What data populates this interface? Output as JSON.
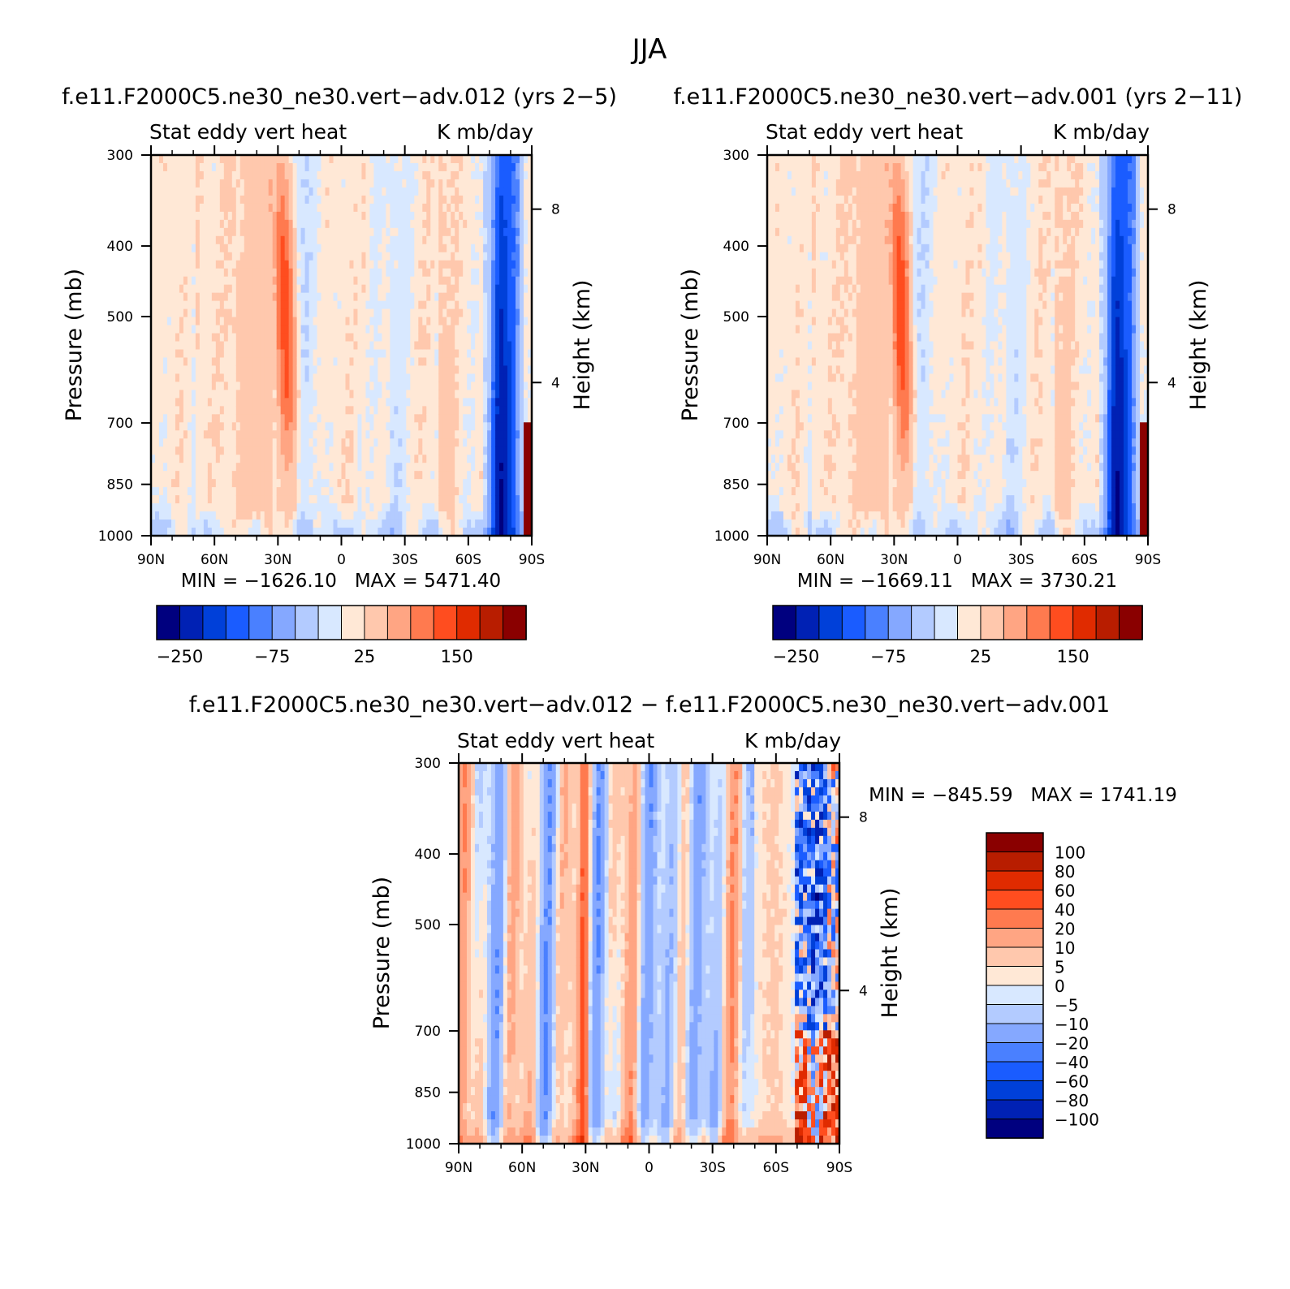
{
  "figure": {
    "title": "JJA"
  },
  "colors": {
    "panel_fill_levels": [
      "#00007f",
      "#0021b4",
      "#0040d9",
      "#1a5cff",
      "#4a80ff",
      "#85a8ff",
      "#b3cbff",
      "#d8e8ff",
      "#ffe8d6",
      "#ffc8ad",
      "#ffa583",
      "#ff7a4f",
      "#ff4d1f",
      "#e02b00",
      "#b81d00",
      "#8a0000"
    ],
    "diff_fill_levels": [
      "#00007f",
      "#0021b4",
      "#0040d9",
      "#1a5cff",
      "#4a80ff",
      "#85a8ff",
      "#b3cbff",
      "#d8e8ff",
      "#ffe8d6",
      "#ffc8ad",
      "#ffa583",
      "#ff7a4f",
      "#ff4d1f",
      "#e02b00",
      "#b81d00",
      "#8a0000"
    ]
  },
  "chart_data": [
    {
      "type": "heatmap",
      "panel_title": "f.e11.F2000C5.ne30_ne30.vert−adv.012 (yrs 2−5)",
      "left_string": "Stat eddy vert heat",
      "right_string": "K mb/day",
      "ylabel": "Pressure (mb)",
      "ylabel_right": "Height (km)",
      "x_ticks": [
        "90N",
        "60N",
        "30N",
        "0",
        "30S",
        "60S",
        "90S"
      ],
      "y_ticks": [
        "300",
        "400",
        "500",
        "700",
        "850",
        "1000"
      ],
      "y_ticks_right": [
        "8",
        "4"
      ],
      "minmax": "MIN = −1626.10   MAX = 5471.40",
      "colorbar_labels": [
        "−250",
        "−75",
        "25",
        "150"
      ],
      "min": -1626.1,
      "max": 5471.4,
      "ylim": [
        1000,
        300
      ],
      "xlim": [
        "90N",
        "90S"
      ]
    },
    {
      "type": "heatmap",
      "panel_title": "f.e11.F2000C5.ne30_ne30.vert−adv.001 (yrs 2−11)",
      "left_string": "Stat eddy vert heat",
      "right_string": "K mb/day",
      "ylabel": "Pressure (mb)",
      "ylabel_right": "Height (km)",
      "x_ticks": [
        "90N",
        "60N",
        "30N",
        "0",
        "30S",
        "60S",
        "90S"
      ],
      "y_ticks": [
        "300",
        "400",
        "500",
        "700",
        "850",
        "1000"
      ],
      "y_ticks_right": [
        "8",
        "4"
      ],
      "minmax": "MIN = −1669.11   MAX = 3730.21",
      "colorbar_labels": [
        "−250",
        "−75",
        "25",
        "150"
      ],
      "min": -1669.11,
      "max": 3730.21,
      "ylim": [
        1000,
        300
      ],
      "xlim": [
        "90N",
        "90S"
      ]
    },
    {
      "type": "heatmap",
      "panel_title": "f.e11.F2000C5.ne30_ne30.vert−adv.012 − f.e11.F2000C5.ne30_ne30.vert−adv.001",
      "left_string": "Stat eddy vert heat",
      "right_string": "K mb/day",
      "ylabel": "Pressure (mb)",
      "ylabel_right": "Height (km)",
      "x_ticks": [
        "90N",
        "60N",
        "30N",
        "0",
        "30S",
        "60S",
        "90S"
      ],
      "y_ticks": [
        "300",
        "400",
        "500",
        "700",
        "850",
        "1000"
      ],
      "y_ticks_right": [
        "8",
        "4"
      ],
      "minmax": "MIN = −845.59   MAX = 1741.19",
      "colorbar_labels": [
        "100",
        "80",
        "60",
        "40",
        "20",
        "10",
        "5",
        "0",
        "−5",
        "−10",
        "−20",
        "−40",
        "−60",
        "−80",
        "−100"
      ],
      "min": -845.59,
      "max": 1741.19,
      "ylim": [
        1000,
        300
      ],
      "xlim": [
        "90N",
        "90S"
      ]
    }
  ]
}
